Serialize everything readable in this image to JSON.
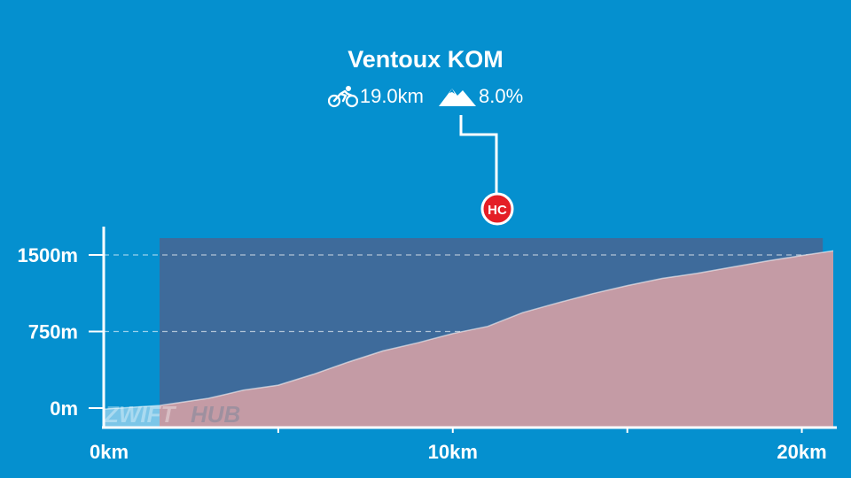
{
  "segment": {
    "name": "Ventoux KOM",
    "distance": "19.0km",
    "gradient": "8.0%",
    "category_badge": "HC",
    "start_km": 1.6,
    "end_km": 20.6
  },
  "watermark": {
    "left": "ZWIFT",
    "right": "HUB"
  },
  "icons": {
    "distance": "cyclist-icon",
    "gradient": "mountain-icon"
  },
  "colors": {
    "background": "#0590cf",
    "profile_fill": "#c49ba5",
    "segment_highlight": "#3e6b9b",
    "pre_segment_fill": "#7cc6e8",
    "badge": "#e41e26"
  },
  "chart_data": {
    "type": "area",
    "title": "Ventoux KOM",
    "xlabel": "",
    "ylabel": "",
    "xlim": [
      0,
      20.9
    ],
    "ylim": [
      0,
      1500
    ],
    "grid": true,
    "x_ticks": [
      "0km",
      "10km",
      "20km"
    ],
    "x_tick_values": [
      0,
      10,
      20
    ],
    "y_ticks": [
      "0m",
      "750m",
      "1500m"
    ],
    "y_tick_values": [
      0,
      750,
      1500
    ],
    "series": [
      {
        "x": [
          0,
          1.6,
          2.0,
          3.0,
          4.0,
          5.0,
          6.0,
          7.0,
          8.0,
          9.0,
          10.0,
          11.0,
          12.0,
          13.0,
          14.0,
          15.0,
          16.0,
          17.0,
          18.0,
          19.0,
          20.0,
          20.9
        ],
        "values": [
          -10,
          25,
          45,
          95,
          175,
          225,
          330,
          450,
          560,
          640,
          730,
          800,
          935,
          1030,
          1120,
          1200,
          1270,
          1320,
          1380,
          1440,
          1495,
          1540
        ]
      }
    ]
  }
}
